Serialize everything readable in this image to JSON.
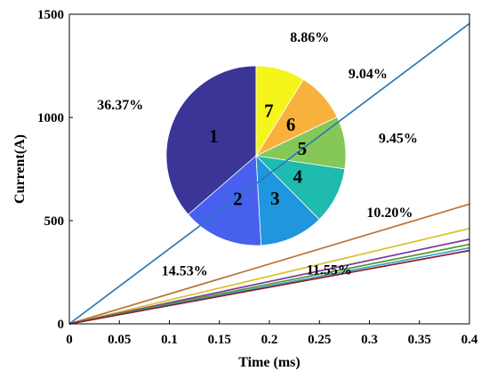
{
  "chart_data": {
    "type": "line",
    "xlabel": "Time (ms)",
    "ylabel": "Current(A)",
    "xlim": [
      0,
      0.4
    ],
    "ylim": [
      0,
      1500
    ],
    "x_ticks": [
      "0",
      "0.05",
      "0.1",
      "0.15",
      "0.2",
      "0.25",
      "0.3",
      "0.35",
      "0.4"
    ],
    "y_ticks": [
      "0",
      "500",
      "1000",
      "1500"
    ],
    "grid": false,
    "series": [
      {
        "color": "#2a7ab8",
        "x": [
          0,
          0.4
        ],
        "y": [
          0,
          1455
        ]
      },
      {
        "color": "#b8733a",
        "x": [
          0,
          0.4
        ],
        "y": [
          0,
          580
        ]
      },
      {
        "color": "#d9c12a",
        "x": [
          0,
          0.4
        ],
        "y": [
          0,
          462
        ]
      },
      {
        "color": "#7a3a98",
        "x": [
          0,
          0.4
        ],
        "y": [
          0,
          410
        ]
      },
      {
        "color": "#4c9a2a",
        "x": [
          0,
          0.4
        ],
        "y": [
          0,
          385
        ]
      },
      {
        "color": "#3aa6c9",
        "x": [
          0,
          0.4
        ],
        "y": [
          0,
          368
        ]
      },
      {
        "color": "#8a1f2c",
        "x": [
          0,
          0.4
        ],
        "y": [
          0,
          355
        ]
      }
    ],
    "inset_pie": {
      "type": "pie",
      "slices": [
        {
          "label": "1",
          "percent": "36.37%",
          "value": 36.37,
          "color": "#3a3596"
        },
        {
          "label": "2",
          "percent": "14.53%",
          "value": 14.53,
          "color": "#4760ee"
        },
        {
          "label": "3",
          "percent": "11.55%",
          "value": 11.55,
          "color": "#1f96dd"
        },
        {
          "label": "4",
          "percent": "10.20%",
          "value": 10.2,
          "color": "#1fbab0"
        },
        {
          "label": "5",
          "percent": "9.45%",
          "value": 9.45,
          "color": "#86c857"
        },
        {
          "label": "6",
          "percent": "9.04%",
          "value": 9.04,
          "color": "#f9b13d"
        },
        {
          "label": "7",
          "percent": "8.86%",
          "value": 8.86,
          "color": "#f5f51c"
        }
      ]
    }
  }
}
